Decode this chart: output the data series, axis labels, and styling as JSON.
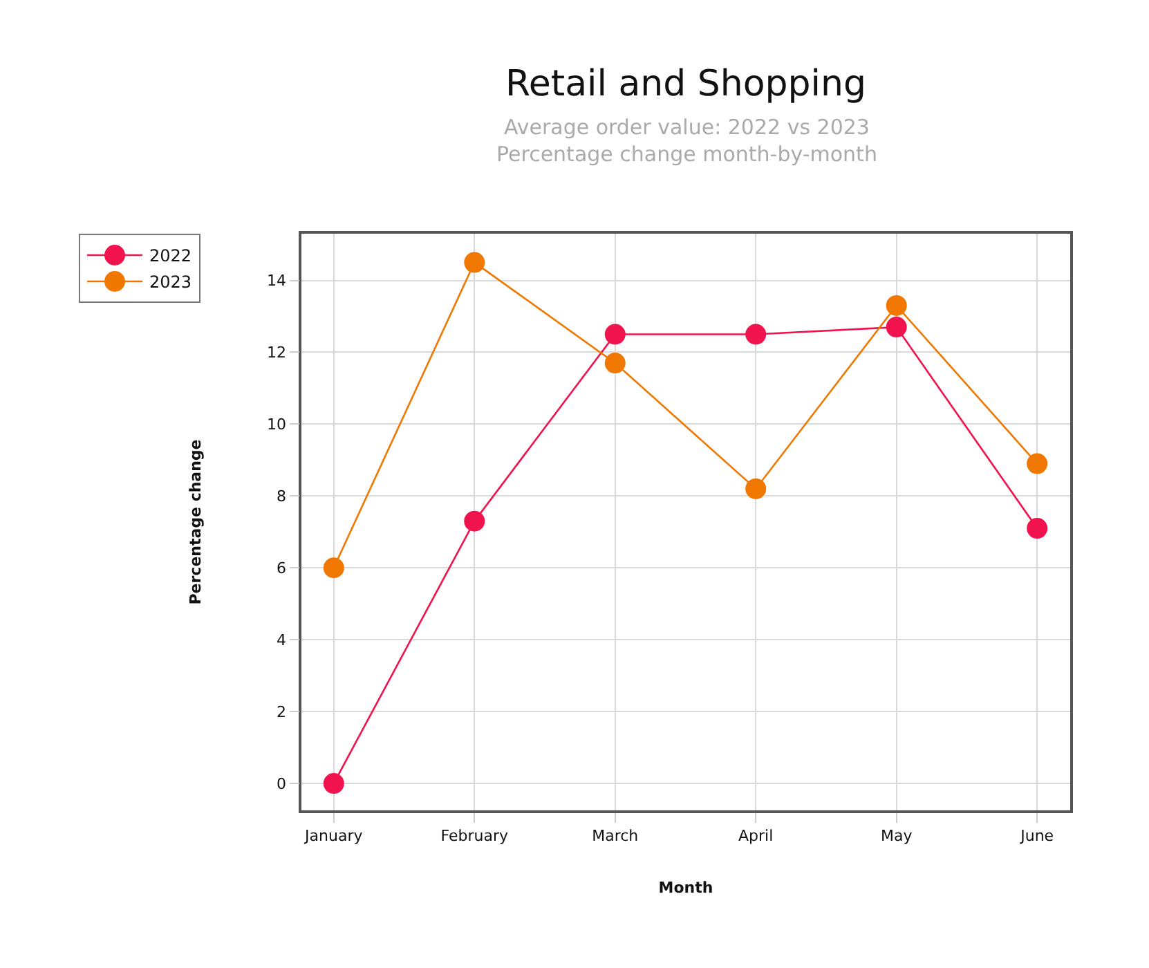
{
  "chart_data": {
    "type": "line",
    "title": "Retail and Shopping",
    "subtitle": "Average order value: 2022 vs 2023\nPercentage change month-by-month",
    "xlabel": "Month",
    "ylabel": "Percentage change",
    "categories": [
      "January",
      "February",
      "March",
      "April",
      "May",
      "June"
    ],
    "series": [
      {
        "name": "2022",
        "color": "#f0134d",
        "values": [
          0,
          7.3,
          12.5,
          12.5,
          12.7,
          7.1
        ]
      },
      {
        "name": "2023",
        "color": "#f07800",
        "values": [
          6.0,
          14.5,
          11.7,
          8.2,
          13.3,
          8.9
        ]
      }
    ],
    "ylim": [
      -0.75,
      15.3
    ],
    "yticks": [
      0,
      2,
      4,
      6,
      8,
      10,
      12,
      14
    ],
    "grid": true,
    "legend": "top left",
    "marker": "circle",
    "line_style": "solid"
  }
}
